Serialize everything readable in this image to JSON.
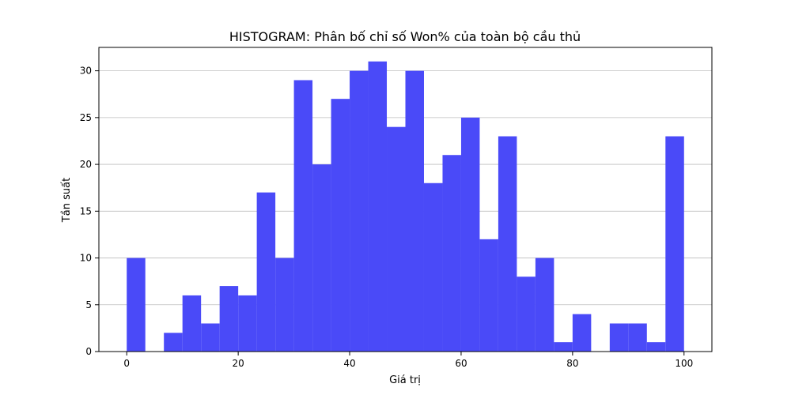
{
  "chart_data": {
    "type": "bar",
    "title": "HISTOGRAM: Phân bố chỉ số Won% của toàn bộ cầu thủ",
    "xlabel": "Giá trị",
    "ylabel": "Tần suất",
    "xlim": [
      -5,
      105
    ],
    "ylim": [
      0,
      32.5
    ],
    "bin_edges": [
      0,
      3.333,
      6.667,
      10,
      13.333,
      16.667,
      20,
      23.333,
      26.667,
      30,
      33.333,
      36.667,
      40,
      43.333,
      46.667,
      50,
      53.333,
      56.667,
      60,
      63.333,
      66.667,
      70,
      73.333,
      76.667,
      80,
      83.333,
      86.667,
      90,
      93.333,
      96.667,
      100
    ],
    "values": [
      10,
      0,
      2,
      6,
      3,
      7,
      6,
      17,
      10,
      29,
      20,
      27,
      30,
      31,
      24,
      30,
      18,
      21,
      25,
      12,
      23,
      8,
      10,
      1,
      4,
      0,
      3,
      3,
      1,
      23
    ],
    "x_ticks": [
      0,
      20,
      40,
      60,
      80,
      100
    ],
    "x_tick_labels": [
      "0",
      "20",
      "40",
      "60",
      "80",
      "100"
    ],
    "y_ticks": [
      0,
      5,
      10,
      15,
      20,
      25,
      30
    ],
    "y_tick_labels": [
      "0",
      "5",
      "10",
      "15",
      "20",
      "25",
      "30"
    ],
    "grid": "y-axis",
    "color": "#4a4af8"
  }
}
